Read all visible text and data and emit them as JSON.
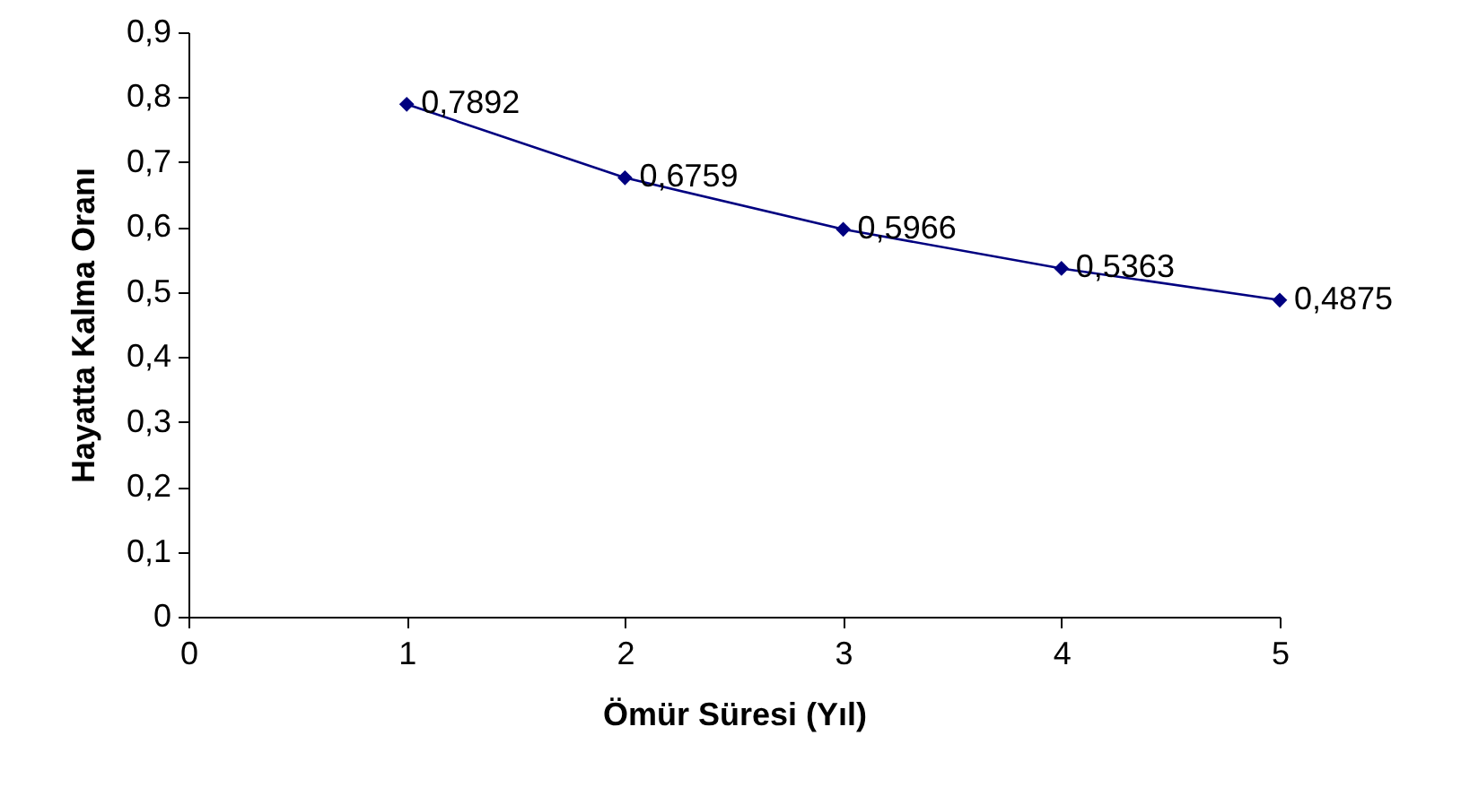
{
  "chart_data": {
    "type": "line",
    "xlabel": "Ömür Süresi (Yıl)",
    "ylabel": "Hayatta Kalma Oranı",
    "x": [
      1,
      2,
      3,
      4,
      5
    ],
    "series": [
      {
        "color": "#000080",
        "values": [
          0.7892,
          0.6759,
          0.5966,
          0.5363,
          0.4875
        ],
        "value_labels": [
          "0,7892",
          "0,6759",
          "0,5966",
          "0,5363",
          "0,4875"
        ]
      }
    ],
    "xlim": [
      0,
      5
    ],
    "xticks": [
      0,
      1,
      2,
      3,
      4,
      5
    ],
    "ylim": [
      0,
      0.9
    ],
    "yticks": [
      {
        "value": 0,
        "label": "0"
      },
      {
        "value": 0.1,
        "label": "0,1"
      },
      {
        "value": 0.2,
        "label": "0,2"
      },
      {
        "value": 0.3,
        "label": "0,3"
      },
      {
        "value": 0.4,
        "label": "0,4"
      },
      {
        "value": 0.5,
        "label": "0,5"
      },
      {
        "value": 0.6,
        "label": "0,6"
      },
      {
        "value": 0.7,
        "label": "0,7"
      },
      {
        "value": 0.8,
        "label": "0,8"
      },
      {
        "value": 0.9,
        "label": "0,9"
      }
    ],
    "marker": "diamond",
    "line_style": "solid"
  }
}
